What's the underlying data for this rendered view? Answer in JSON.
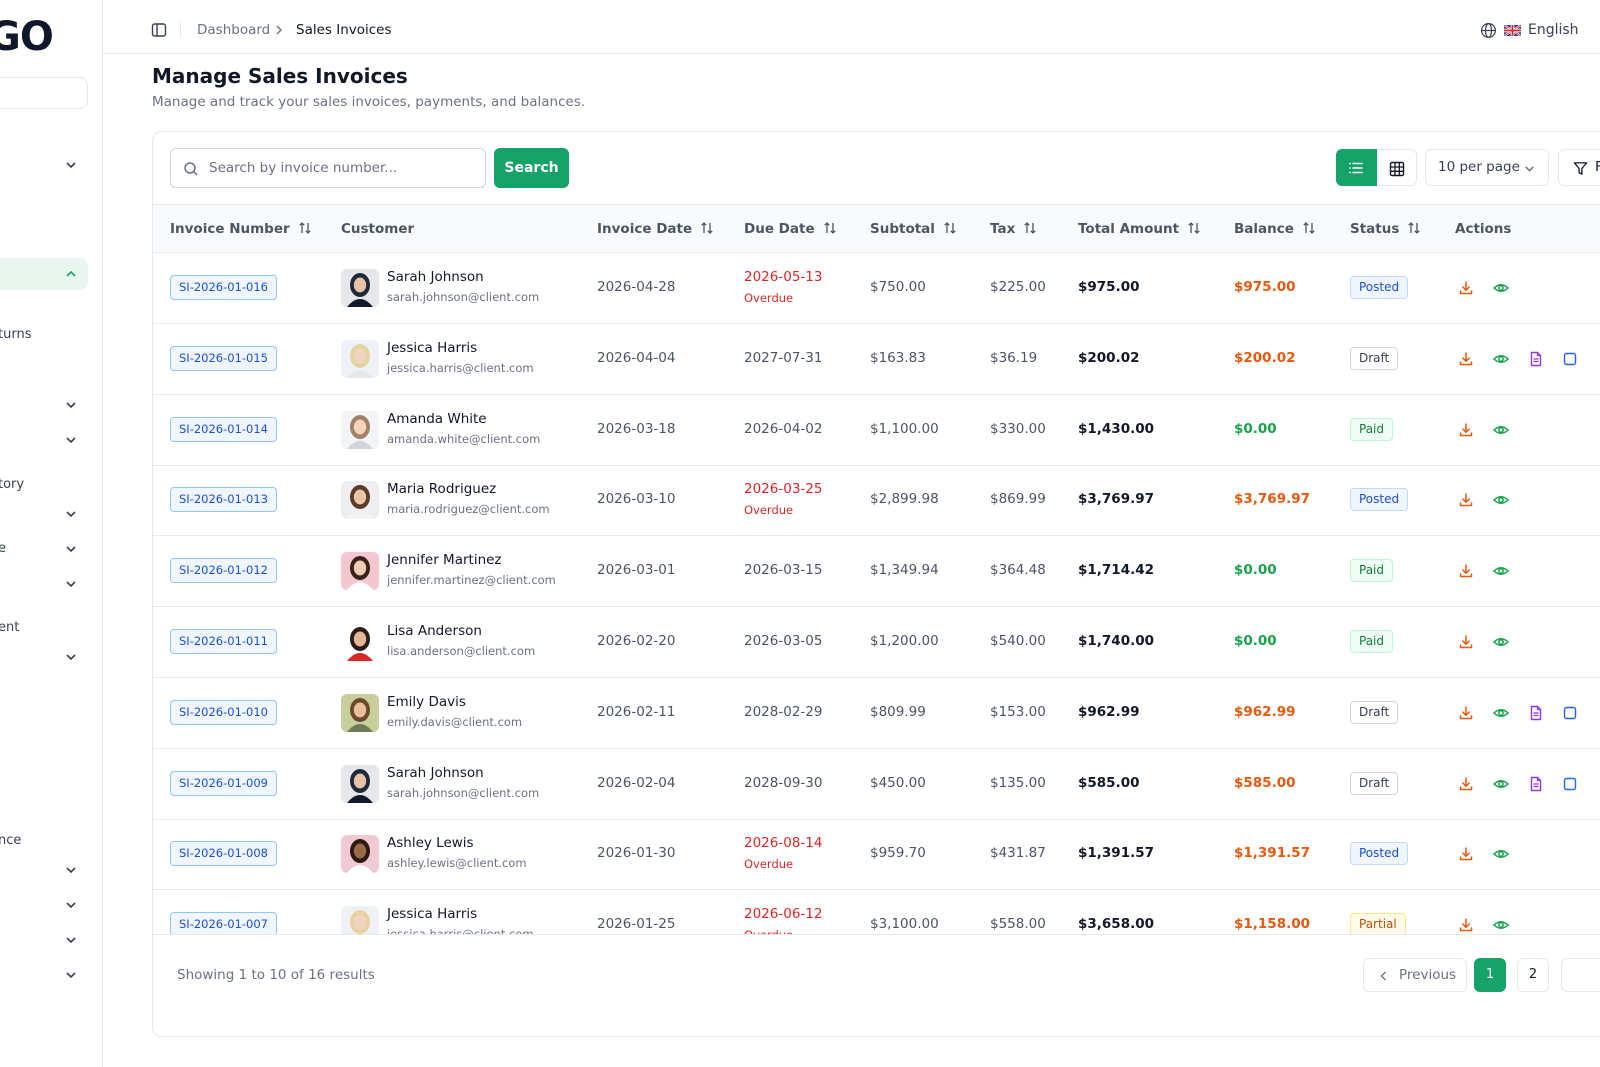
{
  "sidebar": {
    "logo": "GO",
    "items": [
      {
        "label": "",
        "chevron": "chevron-down",
        "active": false
      },
      {
        "label": "",
        "chevron": "chevron-up",
        "active": true
      },
      {
        "label": "turns",
        "chevron": "",
        "active": false
      },
      {
        "label": "",
        "chevron": "chevron-down",
        "active": false
      },
      {
        "label": "",
        "chevron": "chevron-down",
        "active": false
      },
      {
        "label": "tory",
        "chevron": "",
        "active": false
      },
      {
        "label": "",
        "chevron": "chevron-down",
        "active": false
      },
      {
        "label": "e",
        "chevron": "chevron-down",
        "active": false
      },
      {
        "label": "",
        "chevron": "chevron-down",
        "active": false
      },
      {
        "label": "ent",
        "chevron": "",
        "active": false
      },
      {
        "label": "",
        "chevron": "chevron-down",
        "active": false
      },
      {
        "label": "nce",
        "chevron": "",
        "active": false
      },
      {
        "label": "",
        "chevron": "chevron-down",
        "active": false
      },
      {
        "label": "",
        "chevron": "chevron-down",
        "active": false
      },
      {
        "label": "",
        "chevron": "chevron-down",
        "active": false
      },
      {
        "label": "",
        "chevron": "chevron-down",
        "active": false
      }
    ]
  },
  "header": {
    "breadcrumb": [
      "Dashboard",
      "Sales Invoices"
    ],
    "language": "English"
  },
  "page": {
    "title": "Manage Sales Invoices",
    "subtitle": "Manage and track your sales invoices, payments, and balances."
  },
  "toolbar": {
    "search_placeholder": "Search by invoice number...",
    "search_value": "",
    "search_button": "Search",
    "view_mode": "list",
    "per_page": "10 per page",
    "filter_label": "F"
  },
  "table": {
    "columns": [
      "Invoice Number",
      "Customer",
      "Invoice Date",
      "Due Date",
      "Subtotal",
      "Tax",
      "Total Amount",
      "Balance",
      "Status",
      "Actions"
    ],
    "rows": [
      {
        "invoice": "SI-2026-01-016",
        "name": "Sarah Johnson",
        "email": "sarah.johnson@client.com",
        "invoice_date": "2026-04-28",
        "due_date": "2026-05-13",
        "overdue": "Overdue",
        "subtotal": "$750.00",
        "tax": "$225.00",
        "total": "$975.00",
        "balance": "$975.00",
        "status": "Posted",
        "avatar": "dark"
      },
      {
        "invoice": "SI-2026-01-015",
        "name": "Jessica Harris",
        "email": "jessica.harris@client.com",
        "invoice_date": "2026-04-04",
        "due_date": "2027-07-31",
        "overdue": "",
        "subtotal": "$163.83",
        "tax": "$36.19",
        "total": "$200.02",
        "balance": "$200.02",
        "status": "Draft",
        "avatar": "blonde"
      },
      {
        "invoice": "SI-2026-01-014",
        "name": "Amanda White",
        "email": "amanda.white@client.com",
        "invoice_date": "2026-03-18",
        "due_date": "2026-04-02",
        "overdue": "",
        "subtotal": "$1,100.00",
        "tax": "$330.00",
        "total": "$1,430.00",
        "balance": "$0.00",
        "status": "Paid",
        "avatar": "light"
      },
      {
        "invoice": "SI-2026-01-013",
        "name": "Maria Rodriguez",
        "email": "maria.rodriguez@client.com",
        "invoice_date": "2026-03-10",
        "due_date": "2026-03-25",
        "overdue": "Overdue",
        "subtotal": "$2,899.98",
        "tax": "$869.99",
        "total": "$3,769.97",
        "balance": "$3,769.97",
        "status": "Posted",
        "avatar": "brown"
      },
      {
        "invoice": "SI-2026-01-012",
        "name": "Jennifer Martinez",
        "email": "jennifer.martinez@client.com",
        "invoice_date": "2026-03-01",
        "due_date": "2026-03-15",
        "overdue": "",
        "subtotal": "$1,349.94",
        "tax": "$364.48",
        "total": "$1,714.42",
        "balance": "$0.00",
        "status": "Paid",
        "avatar": "pink"
      },
      {
        "invoice": "SI-2026-01-011",
        "name": "Lisa Anderson",
        "email": "lisa.anderson@client.com",
        "invoice_date": "2026-02-20",
        "due_date": "2026-03-05",
        "overdue": "",
        "subtotal": "$1,200.00",
        "tax": "$540.00",
        "total": "$1,740.00",
        "balance": "$0.00",
        "status": "Paid",
        "avatar": "red"
      },
      {
        "invoice": "SI-2026-01-010",
        "name": "Emily Davis",
        "email": "emily.davis@client.com",
        "invoice_date": "2026-02-11",
        "due_date": "2028-02-29",
        "overdue": "",
        "subtotal": "$809.99",
        "tax": "$153.00",
        "total": "$962.99",
        "balance": "$962.99",
        "status": "Draft",
        "avatar": "green"
      },
      {
        "invoice": "SI-2026-01-009",
        "name": "Sarah Johnson",
        "email": "sarah.johnson@client.com",
        "invoice_date": "2026-02-04",
        "due_date": "2028-09-30",
        "overdue": "",
        "subtotal": "$450.00",
        "tax": "$135.00",
        "total": "$585.00",
        "balance": "$585.00",
        "status": "Draft",
        "avatar": "dark"
      },
      {
        "invoice": "SI-2026-01-008",
        "name": "Ashley Lewis",
        "email": "ashley.lewis@client.com",
        "invoice_date": "2026-01-30",
        "due_date": "2026-08-14",
        "overdue": "Overdue",
        "subtotal": "$959.70",
        "tax": "$431.87",
        "total": "$1,391.57",
        "balance": "$1,391.57",
        "status": "Posted",
        "avatar": "curly"
      },
      {
        "invoice": "SI-2026-01-007",
        "name": "Jessica Harris",
        "email": "jessica.harris@client.com",
        "invoice_date": "2026-01-25",
        "due_date": "2026-06-12",
        "overdue": "Overdue",
        "subtotal": "$3,100.00",
        "tax": "$558.00",
        "total": "$3,658.00",
        "balance": "$1,158.00",
        "status": "Partial",
        "avatar": "blonde"
      }
    ]
  },
  "pagination": {
    "showing": "Showing 1 to 10 of 16 results",
    "previous": "Previous",
    "pages": [
      "1",
      "2"
    ],
    "current": "1"
  },
  "colors": {
    "accent": "#16a36a",
    "overdue": "#dc2626",
    "balance_due": "#ea580c",
    "balance_paid": "#16a34a"
  }
}
